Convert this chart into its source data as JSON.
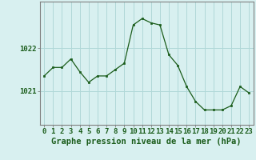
{
  "x": [
    0,
    1,
    2,
    3,
    4,
    5,
    6,
    7,
    8,
    9,
    10,
    11,
    12,
    13,
    14,
    15,
    16,
    17,
    18,
    19,
    20,
    21,
    22,
    23
  ],
  "y": [
    1021.35,
    1021.55,
    1021.55,
    1021.75,
    1021.45,
    1021.2,
    1021.35,
    1021.35,
    1021.5,
    1021.65,
    1022.55,
    1022.7,
    1022.6,
    1022.55,
    1021.85,
    1021.6,
    1021.1,
    1020.75,
    1020.55,
    1020.55,
    1020.55,
    1020.65,
    1021.1,
    1020.95
  ],
  "yticks": [
    1021,
    1022
  ],
  "ylim": [
    1020.2,
    1023.1
  ],
  "xlim": [
    -0.5,
    23.5
  ],
  "line_color": "#1a5c1a",
  "marker_color": "#1a5c1a",
  "bg_color": "#d8f0f0",
  "grid_color": "#b0d8d8",
  "border_color": "#808080",
  "xlabel": "Graphe pression niveau de la mer (hPa)",
  "xlabel_color": "#1a5c1a",
  "tick_label_color": "#1a5c1a",
  "axis_label_fontsize": 7.5,
  "tick_fontsize": 6.5
}
